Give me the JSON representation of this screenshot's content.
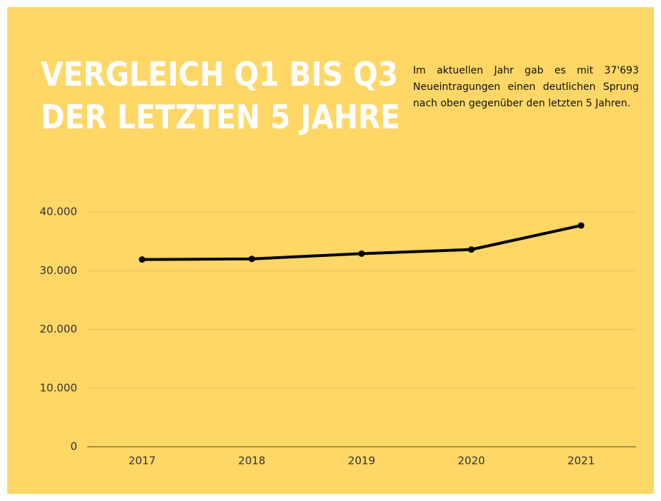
{
  "chart_data": {
    "type": "line",
    "title": [
      "VERGLEICH Q1 BIS Q3",
      "DER LETZTEN 5 JAHRE"
    ],
    "annotation": "Im aktuellen Jahr gab es mit 37'693 Neueintragungen einen deutlichen Sprung nach oben gegenüber den letzten 5 Jahren.",
    "categories": [
      "2017",
      "2018",
      "2019",
      "2020",
      "2021"
    ],
    "values": [
      31900,
      32000,
      32900,
      33600,
      37693
    ],
    "color": "#000000",
    "ylim": [
      0,
      40000
    ],
    "yticks": [
      0,
      {
        "value": 10000,
        "label": "10.000"
      },
      {
        "value": 20000,
        "label": "20.000"
      },
      {
        "value": 30000,
        "label": "30.000"
      },
      {
        "value": 40000,
        "label": "40.000"
      }
    ],
    "grid": true
  }
}
